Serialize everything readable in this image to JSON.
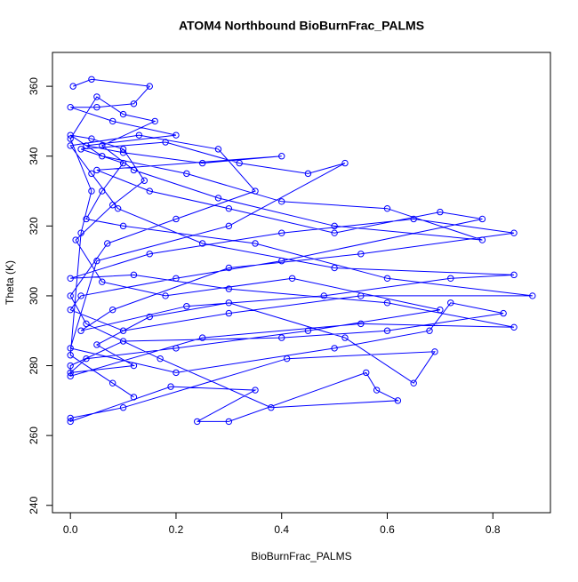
{
  "chart_data": {
    "type": "line",
    "title": "ATOM4 Northbound BioBurnFrac_PALMS",
    "x_label": "BioBurnFrac_PALMS",
    "y_label": "Theta (K)",
    "color": "#0000ff",
    "markers": true,
    "xlim": [
      -0.034,
      0.909
    ],
    "ylim": [
      237.9,
      369.7
    ],
    "xticks": [
      {
        "value": 0,
        "label": "0.0"
      },
      {
        "value": 0.2,
        "label": "0.2"
      },
      {
        "value": 0.4,
        "label": "0.4"
      },
      {
        "value": 0.6,
        "label": "0.6"
      },
      {
        "value": 0.8,
        "label": "0.8"
      }
    ],
    "yticks": [
      240,
      260,
      280,
      300,
      320,
      340,
      360
    ],
    "x": [
      0.005,
      0.04,
      0.15,
      0.12,
      0.05,
      0.0,
      0.08,
      0.2,
      0.03,
      0.1,
      0.25,
      0.4,
      0.05,
      0.15,
      0.3,
      0.5,
      0.7,
      0.78,
      0.4,
      0.2,
      0.02,
      0.0,
      0.1,
      0.3,
      0.55,
      0.875,
      0.6,
      0.35,
      0.1,
      0.03,
      0.06,
      0.1,
      0.02,
      0.18,
      0.32,
      0.45,
      0.52,
      0.3,
      0.05,
      0.0,
      0.2,
      0.5,
      0.68,
      0.72,
      0.82,
      0.6,
      0.4,
      0.1,
      0.0,
      0.0,
      0.25,
      0.55,
      0.84,
      0.6,
      0.3,
      0.12,
      0.0,
      0.15,
      0.4,
      0.65,
      0.84,
      0.55,
      0.3,
      0.08,
      0.02,
      0.22,
      0.48,
      0.72,
      0.84,
      0.5,
      0.25,
      0.09,
      0.04,
      0.0,
      0.13,
      0.28,
      0.35,
      0.2,
      0.07,
      0.0,
      0.03,
      0.17,
      0.38,
      0.62,
      0.58,
      0.56,
      0.3,
      0.24,
      0.35,
      0.19,
      0.0,
      0.0,
      0.1,
      0.41,
      0.69,
      0.65,
      0.52,
      0.3,
      0.15,
      0.05,
      0.12,
      0.0,
      0.03,
      0.2,
      0.45,
      0.7,
      0.42,
      0.18,
      0.06,
      0.01,
      0.08,
      0.14,
      0.1,
      0.04,
      0.0,
      0.06,
      0.22,
      0.4,
      0.6,
      0.78,
      0.5,
      0.28,
      0.12,
      0.06,
      0.16,
      0.1,
      0.05,
      0.0,
      0.04,
      0.02,
      0.0,
      0.08,
      0.12
    ],
    "values": [
      360,
      362,
      360,
      355,
      354,
      354,
      350,
      346,
      343,
      341,
      338,
      340,
      336,
      330,
      325,
      318,
      324,
      322,
      310,
      305,
      300,
      296,
      290,
      295,
      300,
      300,
      305,
      315,
      320,
      322,
      330,
      338,
      342,
      344,
      338,
      335,
      338,
      320,
      310,
      285,
      278,
      285,
      290,
      298,
      295,
      290,
      288,
      287,
      280,
      277,
      288,
      292,
      291,
      298,
      302,
      306,
      305,
      312,
      318,
      322,
      318,
      312,
      308,
      296,
      290,
      297,
      300,
      305,
      306,
      308,
      315,
      325,
      335,
      343,
      346,
      342,
      330,
      322,
      315,
      300,
      292,
      282,
      268,
      270,
      273,
      278,
      264,
      264,
      273,
      274,
      264,
      265,
      268,
      282,
      284,
      275,
      288,
      298,
      294,
      286,
      280,
      278,
      282,
      285,
      290,
      296,
      305,
      300,
      304,
      316,
      326,
      333,
      342,
      345,
      346,
      340,
      335,
      327,
      325,
      316,
      320,
      328,
      336,
      343,
      350,
      352,
      357,
      345,
      330,
      318,
      283,
      275,
      271
    ]
  }
}
